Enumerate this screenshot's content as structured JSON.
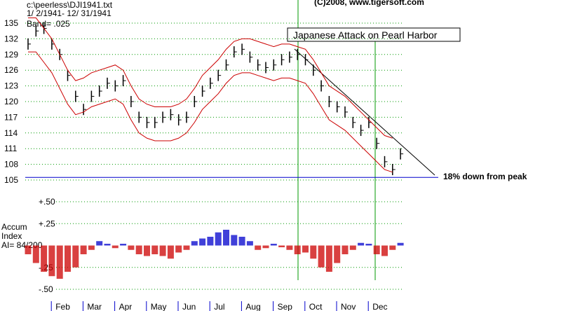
{
  "chart_data": [
    {
      "type": "price-bands",
      "file": "c:\\peerless\\DJI1941.txt",
      "date_range": " 1/ 2/1941- 12/ 31/1941",
      "band": "Band= .025",
      "copyright": "(C)2008, www.tigersoft.com",
      "event": "Japanese Attack on Pearl Harbor",
      "reference_label": "18% down from peak",
      "reference_value": 105.5,
      "ylim": [
        105,
        135
      ],
      "yticks": [
        105,
        108,
        111,
        114,
        117,
        120,
        123,
        126,
        129,
        132,
        135
      ],
      "grid": true,
      "series": [
        {
          "name": "DJI",
          "color": "#000000",
          "values": [
            131,
            133.5,
            134,
            131,
            129,
            125,
            121,
            118.5,
            121,
            122,
            123.5,
            123,
            124,
            120,
            117,
            116,
            116,
            117,
            117.5,
            116.5,
            117,
            120,
            122,
            123.5,
            125,
            127,
            129.5,
            130,
            128.5,
            127,
            126.5,
            127,
            128,
            128.5,
            129,
            128,
            126,
            123,
            120,
            119,
            118,
            116,
            114.5,
            116,
            112,
            108.5,
            107,
            110
          ]
        },
        {
          "name": "Upper band",
          "color": "#cc0000",
          "values": [
            136,
            136,
            134,
            132,
            129,
            126,
            124,
            124.5,
            125.5,
            126,
            126.5,
            127,
            126,
            123,
            120.5,
            119.5,
            119,
            119,
            119,
            119.5,
            120.5,
            122.5,
            125,
            126.5,
            128,
            130,
            131.5,
            132,
            132,
            131.5,
            131,
            130.5,
            131,
            131,
            130.5,
            130,
            128,
            125.5,
            123,
            122,
            121,
            119.5,
            118,
            116.5,
            115,
            113.5,
            113,
            null
          ]
        },
        {
          "name": "Lower band",
          "color": "#cc0000",
          "values": [
            129.5,
            129.5,
            127.5,
            125.5,
            122.5,
            119.5,
            117.5,
            118,
            119,
            119.5,
            120,
            120.5,
            119.5,
            116.5,
            114,
            113,
            112.5,
            112.5,
            112.5,
            113,
            114,
            116,
            118.5,
            120,
            121.5,
            123.5,
            125,
            125.5,
            125.5,
            125,
            124.5,
            124,
            124.5,
            124.5,
            124,
            123.5,
            121.5,
            119,
            116.5,
            115.5,
            114.5,
            113,
            111.5,
            110,
            108.5,
            107,
            106.5,
            null
          ]
        }
      ]
    },
    {
      "type": "accum",
      "title": "Accum",
      "subtitle": "Index",
      "note": "AI= 84/200",
      "categories": [
        null,
        null,
        null,
        null,
        "Feb",
        null,
        null,
        null,
        "Mar",
        null,
        null,
        null,
        "Apr",
        null,
        null,
        null,
        "May",
        null,
        null,
        null,
        "Jun",
        null,
        null,
        null,
        "Jul",
        null,
        null,
        null,
        "Aug",
        null,
        null,
        null,
        "Sep",
        null,
        null,
        null,
        "Oct",
        null,
        null,
        null,
        "Nov",
        null,
        null,
        null,
        "Dec",
        null,
        null,
        null
      ],
      "ylim": [
        -0.5,
        0.5
      ],
      "yticks": [
        {
          "value": 0.5,
          "label": "+.50"
        },
        {
          "value": 0.25,
          "label": "+.25"
        },
        {
          "value": -0.25,
          "label": "-.25"
        },
        {
          "value": -0.5,
          "label": "-.50"
        }
      ],
      "pos_color": "#0000cc",
      "neg_color": "#cc0000",
      "values": [
        -0.1,
        -0.2,
        -0.3,
        -0.35,
        -0.38,
        -0.3,
        -0.25,
        -0.1,
        -0.05,
        0.05,
        0.02,
        -0.03,
        0.02,
        -0.05,
        -0.1,
        -0.12,
        -0.1,
        -0.12,
        -0.15,
        -0.08,
        -0.05,
        0.05,
        0.08,
        0.1,
        0.15,
        0.18,
        0.12,
        0.1,
        0.05,
        -0.05,
        -0.03,
        0.02,
        -0.02,
        -0.05,
        -0.1,
        -0.08,
        -0.15,
        -0.25,
        -0.3,
        -0.2,
        -0.1,
        -0.05,
        0.03,
        0.02,
        -0.1,
        -0.12,
        -0.05,
        0.03
      ]
    }
  ]
}
